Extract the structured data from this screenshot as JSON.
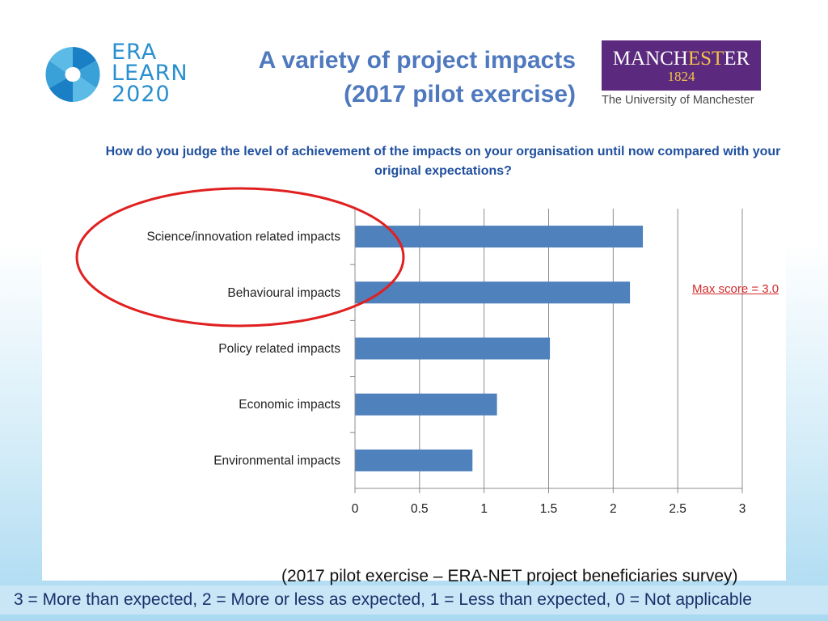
{
  "logo": {
    "era": "ERA",
    "learn": "LEARN",
    "year": "2020",
    "color": "#2a8fcf"
  },
  "title": {
    "line1": "A variety of project impacts",
    "line2": "(2017 pilot exercise)"
  },
  "university": {
    "name_part1": "MANCH",
    "name_part2": "EST",
    "name_part3": "ER",
    "founded": "1824",
    "subtitle": "The University of Manchester"
  },
  "question": "How do you judge the level of achievement of the impacts on your organisation until now compared with your original expectations?",
  "annotation": "Max score = 3.0",
  "source": "(2017 pilot exercise – ERA-NET project beneficiaries survey)",
  "scale_legend": "3 = More than expected, 2 = More or less as expected, 1 = Less than expected, 0 = Not applicable",
  "chart_data": {
    "type": "bar",
    "orientation": "horizontal",
    "categories": [
      "Science/innovation related impacts",
      "Behavioural impacts",
      "Policy related impacts",
      "Economic impacts",
      "Environmental impacts"
    ],
    "values": [
      2.23,
      2.13,
      1.51,
      1.1,
      0.91
    ],
    "xlim": [
      0,
      3
    ],
    "xticks": [
      "0",
      "0.5",
      "1",
      "1.5",
      "2",
      "2.5",
      "3"
    ],
    "grid": true,
    "bar_color": "#4f81bd",
    "highlight_color": "#e02020"
  }
}
